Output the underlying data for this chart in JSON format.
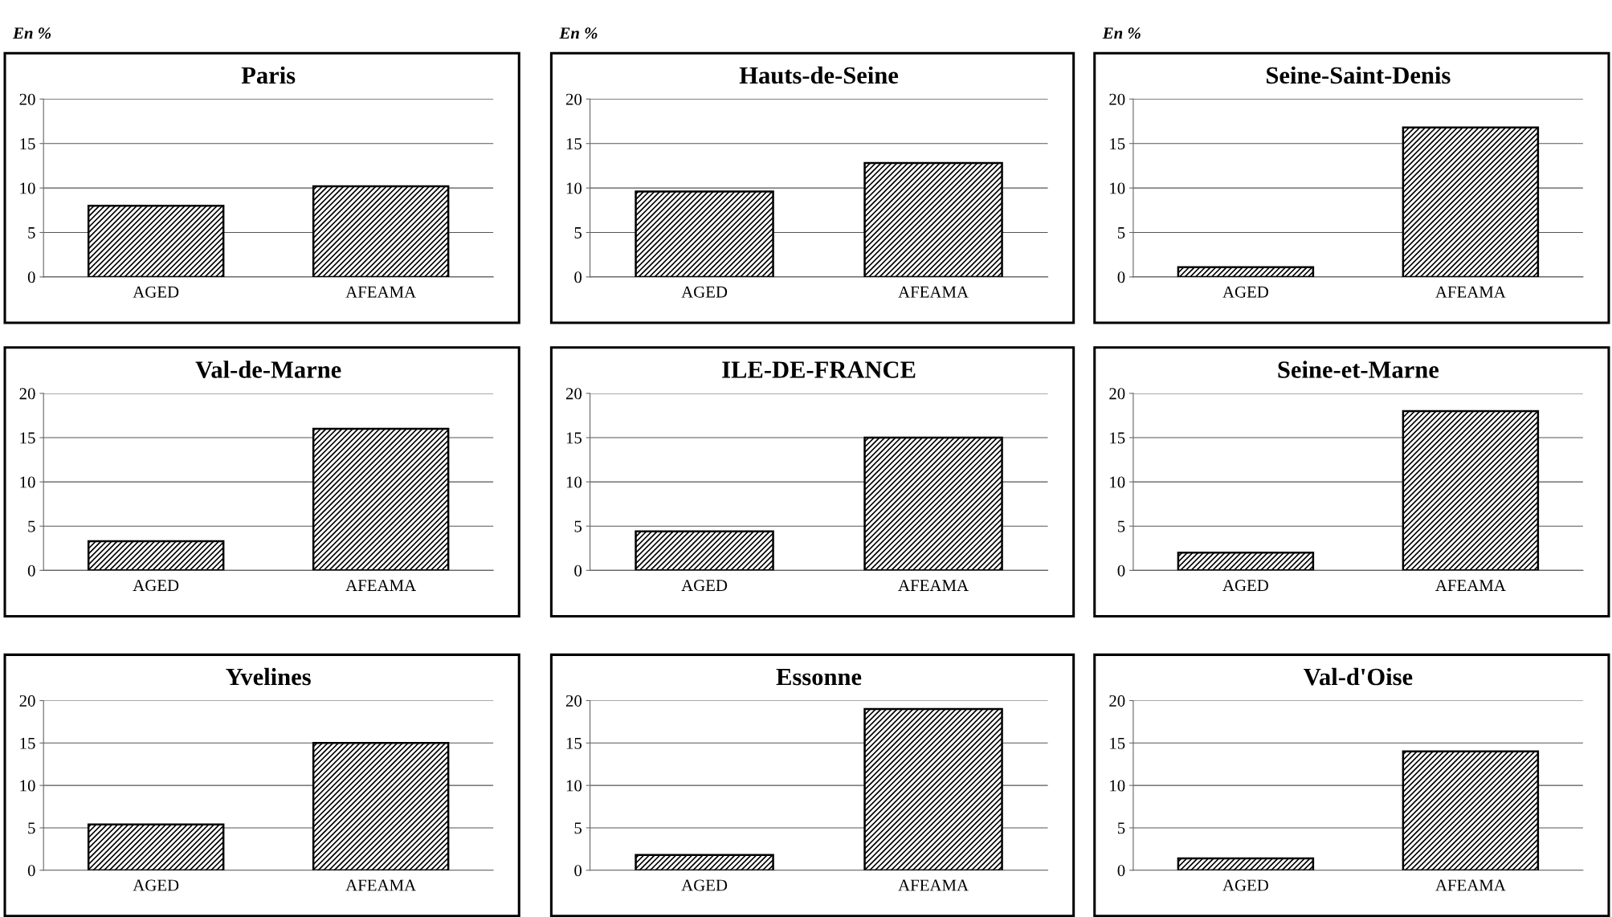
{
  "chart_data": [
    {
      "type": "bar",
      "title": "Paris",
      "annotations": [
        "En %"
      ],
      "categories": [
        "AGED",
        "AFEAMA"
      ],
      "values": [
        8,
        10.2
      ],
      "color": "#000000",
      "ylim": [
        0,
        20
      ],
      "yticks": [
        0,
        5,
        10,
        15,
        20
      ],
      "grid": "y"
    },
    {
      "type": "bar",
      "title": "Hauts-de-Seine",
      "annotations": [
        "En %"
      ],
      "categories": [
        "AGED",
        "AFEAMA"
      ],
      "values": [
        9.6,
        12.8
      ],
      "color": "#000000",
      "ylim": [
        0,
        20
      ],
      "yticks": [
        0,
        5,
        10,
        15,
        20
      ],
      "grid": "y"
    },
    {
      "type": "bar",
      "title": "Seine-Saint-Denis",
      "annotations": [
        "En %"
      ],
      "categories": [
        "AGED",
        "AFEAMA"
      ],
      "values": [
        1.1,
        16.8
      ],
      "color": "#000000",
      "ylim": [
        0,
        20
      ],
      "yticks": [
        0,
        5,
        10,
        15,
        20
      ],
      "grid": "y"
    },
    {
      "type": "bar",
      "title": "Val-de-Marne",
      "categories": [
        "AGED",
        "AFEAMA"
      ],
      "values": [
        3.3,
        16
      ],
      "color": "#000000",
      "ylim": [
        0,
        20
      ],
      "yticks": [
        0,
        5,
        10,
        15,
        20
      ],
      "grid": "y"
    },
    {
      "type": "bar",
      "title": "ILE-DE-FRANCE",
      "categories": [
        "AGED",
        "AFEAMA"
      ],
      "values": [
        4.4,
        15
      ],
      "color": "#000000",
      "ylim": [
        0,
        20
      ],
      "yticks": [
        0,
        5,
        10,
        15,
        20
      ],
      "grid": "y"
    },
    {
      "type": "bar",
      "title": "Seine-et-Marne",
      "categories": [
        "AGED",
        "AFEAMA"
      ],
      "values": [
        2,
        18
      ],
      "color": "#000000",
      "ylim": [
        0,
        20
      ],
      "yticks": [
        0,
        5,
        10,
        15,
        20
      ],
      "grid": "y"
    },
    {
      "type": "bar",
      "title": "Yvelines",
      "categories": [
        "AGED",
        "AFEAMA"
      ],
      "values": [
        5.4,
        15
      ],
      "color": "#000000",
      "ylim": [
        0,
        20
      ],
      "yticks": [
        0,
        5,
        10,
        15,
        20
      ],
      "grid": "y"
    },
    {
      "type": "bar",
      "title": "Essonne",
      "categories": [
        "AGED",
        "AFEAMA"
      ],
      "values": [
        1.8,
        19
      ],
      "color": "#000000",
      "ylim": [
        0,
        20
      ],
      "yticks": [
        0,
        5,
        10,
        15,
        20
      ],
      "grid": "y"
    },
    {
      "type": "bar",
      "title": "Val-d'Oise",
      "categories": [
        "AGED",
        "AFEAMA"
      ],
      "values": [
        1.4,
        14
      ],
      "color": "#000000",
      "ylim": [
        0,
        20
      ],
      "yticks": [
        0,
        5,
        10,
        15,
        20
      ],
      "grid": "y"
    }
  ]
}
